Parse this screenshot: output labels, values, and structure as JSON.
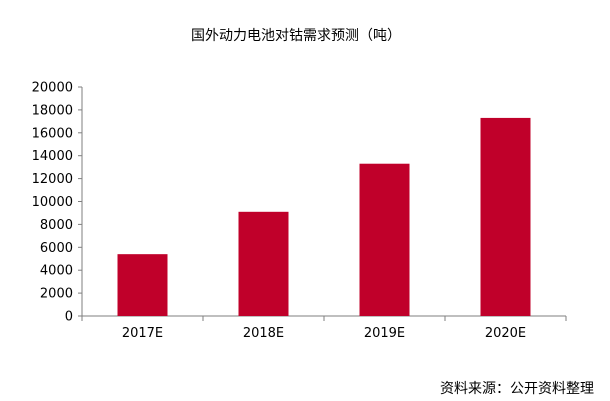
{
  "chart_data": {
    "type": "bar",
    "title": "国外动力电池对钴需求预测（吨）",
    "categories": [
      "2017E",
      "2018E",
      "2019E",
      "2020E"
    ],
    "values": [
      5400,
      9100,
      13300,
      17300
    ],
    "ylim": [
      0,
      20000
    ],
    "yticks": [
      0,
      2000,
      4000,
      6000,
      8000,
      10000,
      12000,
      14000,
      16000,
      18000,
      20000
    ],
    "xlabel": "",
    "ylabel": "",
    "grid": false,
    "legend": "none",
    "bar_color": "#C0002A"
  },
  "source": "资料来源：公开资料整理"
}
